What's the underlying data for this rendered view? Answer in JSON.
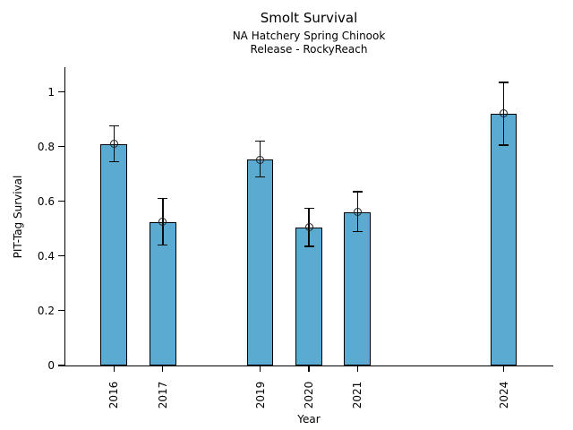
{
  "chart_data": {
    "type": "bar",
    "title": "Smolt Survival",
    "subtitle1": "NA Hatchery Spring Chinook",
    "subtitle2": "Release - RockyReach",
    "xlabel": "Year",
    "ylabel": "PIT-Tag Survival",
    "xlim": [
      2015,
      2025
    ],
    "ylim": [
      0,
      1.09
    ],
    "yticks": [
      0,
      0.2,
      0.4,
      0.6,
      0.8,
      1
    ],
    "ytick_labels": [
      "0",
      "0.2",
      "0.4",
      "0.6",
      "0.8",
      "1"
    ],
    "categories": [
      2016,
      2017,
      2019,
      2020,
      2021,
      2024
    ],
    "values": [
      0.81,
      0.525,
      0.752,
      0.505,
      0.56,
      0.92
    ],
    "error_low": [
      0.745,
      0.44,
      0.69,
      0.435,
      0.49,
      0.805
    ],
    "error_high": [
      0.875,
      0.61,
      0.82,
      0.575,
      0.635,
      1.035
    ],
    "bar_width_years": 0.55,
    "bar_color": "#5BAAD2",
    "bar_edge_color": "#000000",
    "axis_color": "#000000",
    "text_color": "#000000",
    "background_color": "#FFFFFF",
    "grid": false,
    "legend": null,
    "marker_style": "open-circle",
    "error_bars": true
  }
}
